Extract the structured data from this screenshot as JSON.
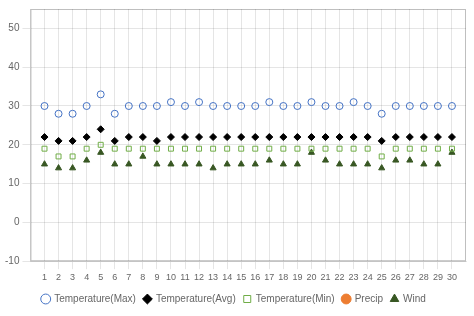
{
  "chart_data": {
    "type": "scatter",
    "x": [
      1,
      2,
      3,
      4,
      5,
      6,
      7,
      8,
      9,
      10,
      11,
      12,
      13,
      14,
      15,
      16,
      17,
      18,
      19,
      20,
      21,
      22,
      23,
      24,
      25,
      26,
      27,
      28,
      29,
      30
    ],
    "series": [
      {
        "name": "Temperature(Max)",
        "color": "#4472c4",
        "marker": "circle_open",
        "values": [
          30,
          28,
          28,
          30,
          33,
          28,
          30,
          30,
          30,
          31,
          30,
          31,
          30,
          30,
          30,
          30,
          31,
          30,
          30,
          31,
          30,
          30,
          31,
          30,
          28,
          30,
          30,
          30,
          30,
          30
        ]
      },
      {
        "name": "Temperature(Avg)",
        "color": "#000000",
        "marker": "diamond",
        "values": [
          22,
          21,
          21,
          22,
          24,
          21,
          22,
          22,
          21,
          22,
          22,
          22,
          22,
          22,
          22,
          22,
          22,
          22,
          22,
          22,
          22,
          22,
          22,
          22,
          21,
          22,
          22,
          22,
          22,
          22
        ]
      },
      {
        "name": "Temperature(Min)",
        "color": "#70ad47",
        "marker": "square_open",
        "values": [
          19,
          17,
          17,
          19,
          20,
          19,
          19,
          19,
          19,
          19,
          19,
          19,
          19,
          19,
          19,
          19,
          19,
          19,
          19,
          19,
          19,
          19,
          19,
          19,
          17,
          19,
          19,
          19,
          19,
          19
        ]
      },
      {
        "name": "Precip",
        "color": "#ed7d31",
        "marker": "circle",
        "values": [
          null,
          null,
          null,
          null,
          null,
          null,
          null,
          null,
          null,
          null,
          null,
          null,
          null,
          null,
          null,
          null,
          null,
          null,
          null,
          null,
          null,
          null,
          null,
          null,
          null,
          null,
          null,
          null,
          null,
          null
        ]
      },
      {
        "name": "Wind",
        "color": "#385723",
        "marker": "triangle",
        "values": [
          15,
          14,
          14,
          16,
          18,
          15,
          15,
          17,
          15,
          15,
          15,
          15,
          14,
          15,
          15,
          15,
          16,
          15,
          15,
          18,
          16,
          15,
          15,
          15,
          14,
          16,
          16,
          15,
          15,
          18
        ]
      }
    ],
    "xlim": [
      0,
      31
    ],
    "xticks": [
      1,
      2,
      3,
      4,
      5,
      6,
      7,
      8,
      9,
      10,
      11,
      12,
      13,
      14,
      15,
      16,
      17,
      18,
      19,
      20,
      21,
      22,
      23,
      24,
      25,
      26,
      27,
      28,
      29,
      30
    ],
    "ylim": [
      -10,
      55
    ],
    "yticks": [
      -10,
      0,
      10,
      20,
      30,
      40,
      50
    ],
    "grid": true,
    "legend": "bottom"
  }
}
